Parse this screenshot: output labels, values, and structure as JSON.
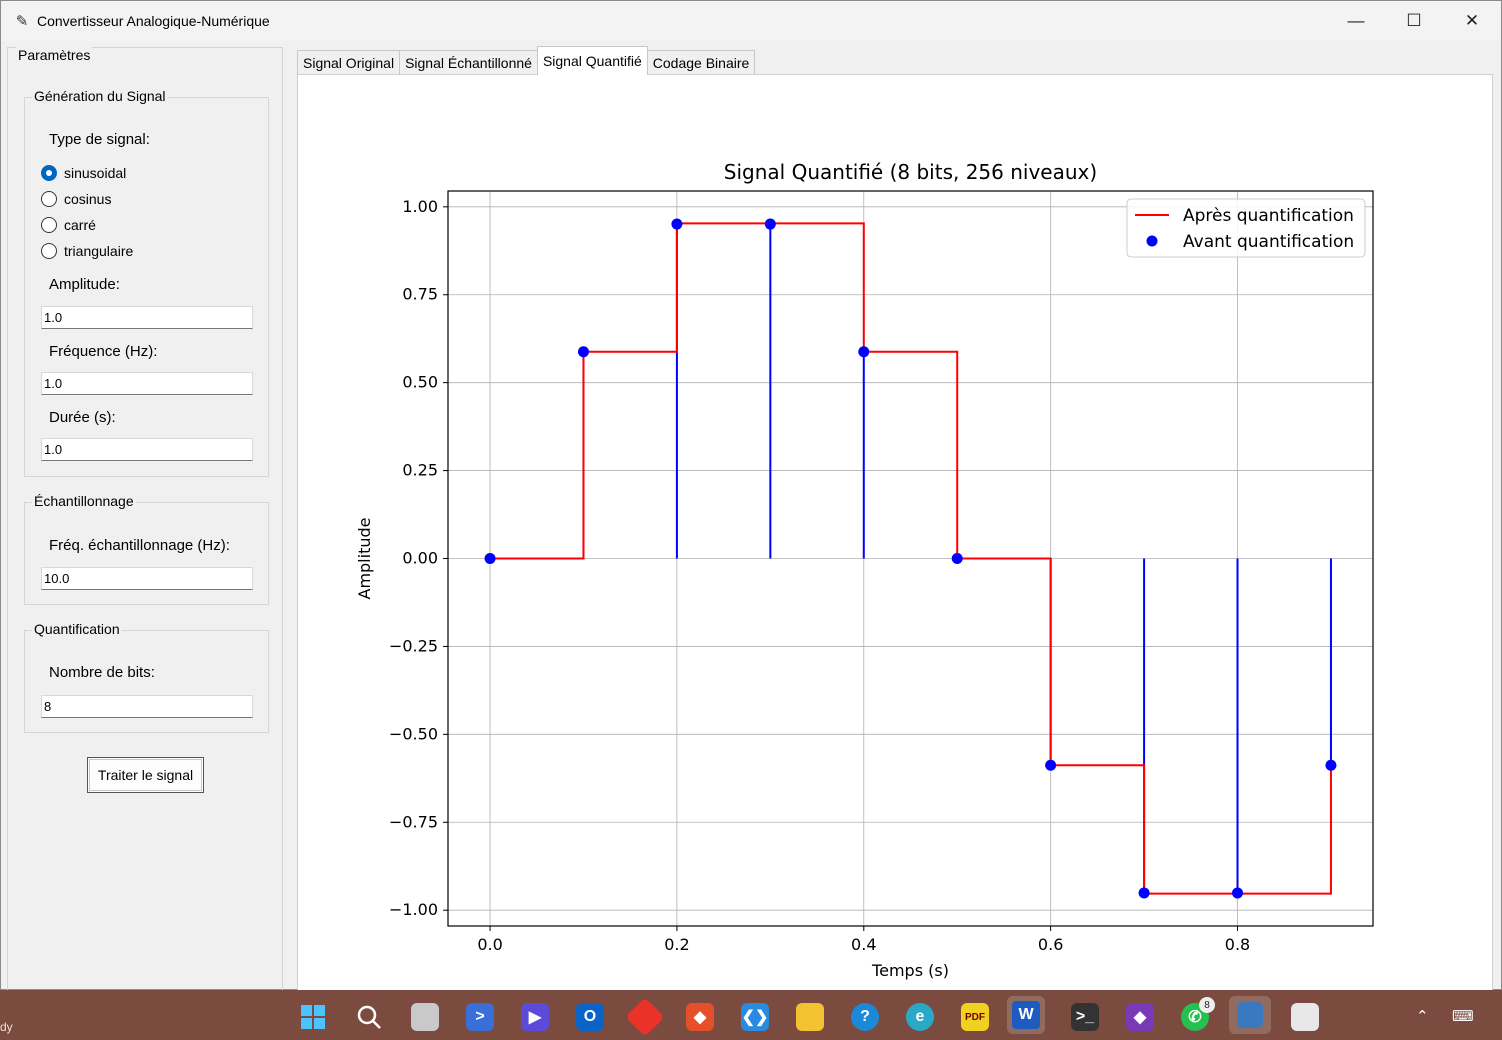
{
  "window": {
    "title": "Convertisseur Analogique-Numérique",
    "minimize": "—",
    "maximize": "☐",
    "close": "✕"
  },
  "params": {
    "title": "Paramètres",
    "generation": {
      "title": "Génération du Signal",
      "type_label": "Type de signal:",
      "types": [
        "sinusoidal",
        "cosinus",
        "carré",
        "triangulaire"
      ],
      "selected_type": "sinusoidal",
      "amplitude_label": "Amplitude:",
      "amplitude": "1.0",
      "frequency_label": "Fréquence (Hz):",
      "frequency": "1.0",
      "duration_label": "Durée (s):",
      "duration": "1.0"
    },
    "sampling": {
      "title": "Échantillonnage",
      "fs_label": "Fréq. échantillonnage (Hz):",
      "fs": "10.0"
    },
    "quantization": {
      "title": "Quantification",
      "bits_label": "Nombre de bits:",
      "bits": "8"
    },
    "process_button": "Traiter le signal"
  },
  "tabs": [
    {
      "label": "Signal Original",
      "active": false
    },
    {
      "label": "Signal Échantillonné",
      "active": false
    },
    {
      "label": "Signal Quantifié",
      "active": true
    },
    {
      "label": "Codage Binaire",
      "active": false
    }
  ],
  "chart_data": {
    "type": "line",
    "title": "Signal Quantifié (8 bits, 256 niveaux)",
    "xlabel": "Temps (s)",
    "ylabel": "Amplitude",
    "xlim": [
      -0.045,
      0.945
    ],
    "ylim": [
      -1.045,
      1.045
    ],
    "xticks": [
      0.0,
      0.2,
      0.4,
      0.6,
      0.8
    ],
    "xtick_labels": [
      "0.0",
      "0.2",
      "0.4",
      "0.6",
      "0.8"
    ],
    "yticks": [
      1.0,
      0.75,
      0.5,
      0.25,
      0.0,
      -0.25,
      -0.5,
      -0.75,
      -1.0
    ],
    "ytick_labels": [
      "1.00",
      "0.75",
      "0.50",
      "0.25",
      "0.00",
      "−0.25",
      "−0.50",
      "−0.75",
      "−1.00"
    ],
    "grid": true,
    "legend_position": "top-right",
    "series": [
      {
        "name": "Après quantification",
        "style": "step",
        "color": "#ff0000",
        "x": [
          0.0,
          0.1,
          0.2,
          0.3,
          0.4,
          0.5,
          0.6,
          0.7,
          0.8,
          0.9
        ],
        "y": [
          0.0,
          0.588,
          0.953,
          0.953,
          0.588,
          0.0,
          -0.588,
          -0.953,
          -0.953,
          -0.588
        ]
      },
      {
        "name": "Avant quantification",
        "style": "stem",
        "color": "#0000ff",
        "x": [
          0.0,
          0.1,
          0.2,
          0.3,
          0.4,
          0.5,
          0.6,
          0.7,
          0.8,
          0.9
        ],
        "y": [
          0.0,
          0.588,
          0.951,
          0.951,
          0.588,
          0.0,
          -0.588,
          -0.951,
          -0.951,
          -0.588
        ]
      }
    ]
  },
  "taskbar": {
    "status_text": "dy",
    "whatsapp_badge": "8"
  }
}
